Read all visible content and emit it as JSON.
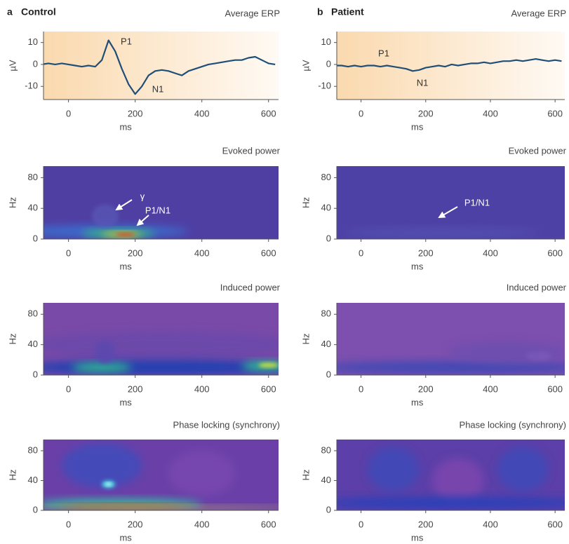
{
  "panels": [
    {
      "letter": "a",
      "label": "Control"
    },
    {
      "letter": "b",
      "label": "Patient"
    }
  ],
  "chart_data": [
    {
      "type": "line",
      "title": "Average ERP",
      "xlabel": "ms",
      "ylabel": "µV",
      "color": "#1f4e79",
      "x": [
        -80,
        -60,
        -40,
        -20,
        0,
        20,
        40,
        60,
        80,
        100,
        120,
        140,
        160,
        180,
        200,
        220,
        240,
        260,
        280,
        300,
        320,
        340,
        360,
        380,
        400,
        420,
        440,
        460,
        480,
        500,
        520,
        540,
        560,
        580,
        600,
        620
      ],
      "values": [
        0,
        0.5,
        0,
        0.5,
        0,
        -0.5,
        -1,
        -0.5,
        -1,
        2,
        11,
        6,
        -2,
        -9,
        -13.5,
        -10,
        -5,
        -3,
        -2.5,
        -3,
        -4,
        -5,
        -3,
        -2,
        -1,
        0,
        0.5,
        1,
        1.5,
        2,
        2,
        3,
        3.5,
        2,
        0.5,
        0
      ],
      "annotations": [
        "P1",
        "N1"
      ],
      "xlim": [
        -75,
        630
      ],
      "xticks": [
        0,
        200,
        400,
        600
      ],
      "ylim": [
        -16,
        15
      ],
      "yticks": [
        -10,
        0,
        10
      ]
    },
    {
      "type": "line",
      "title": "Average ERP",
      "xlabel": "ms",
      "ylabel": "µV",
      "color": "#1f4e79",
      "x": [
        -80,
        -60,
        -40,
        -20,
        0,
        20,
        40,
        60,
        80,
        100,
        120,
        140,
        160,
        180,
        200,
        220,
        240,
        260,
        280,
        300,
        320,
        340,
        360,
        380,
        400,
        420,
        440,
        460,
        480,
        500,
        520,
        540,
        560,
        580,
        600,
        620
      ],
      "values": [
        -0.5,
        -0.5,
        -1,
        -0.5,
        -1,
        -0.5,
        -0.5,
        -1,
        -0.5,
        -1,
        -1.5,
        -2,
        -3,
        -2.5,
        -1.5,
        -1,
        -0.5,
        -1,
        0,
        -0.5,
        0,
        0.5,
        0.5,
        1,
        0.5,
        1,
        1.5,
        1.5,
        2,
        1.5,
        2,
        2.5,
        2,
        1.5,
        2,
        1.5
      ],
      "annotations": [
        "P1",
        "N1"
      ],
      "xlim": [
        -75,
        630
      ],
      "xticks": [
        0,
        200,
        400,
        600
      ],
      "ylim": [
        -16,
        15
      ],
      "yticks": [
        -10,
        0,
        10
      ]
    },
    {
      "type": "heatmap",
      "title": "Evoked power",
      "xlabel": "ms",
      "ylabel": "Hz",
      "annotations": [
        "γ",
        "P1/N1"
      ],
      "xlim": [
        -75,
        630
      ],
      "xticks": [
        0,
        200,
        400,
        600
      ],
      "ylim": [
        0,
        95
      ],
      "yticks": [
        0,
        40,
        80
      ]
    },
    {
      "type": "heatmap",
      "title": "Evoked power",
      "xlabel": "ms",
      "ylabel": "Hz",
      "annotations": [
        "P1/N1"
      ],
      "xlim": [
        -75,
        630
      ],
      "xticks": [
        0,
        200,
        400,
        600
      ],
      "ylim": [
        0,
        95
      ],
      "yticks": [
        0,
        40,
        80
      ]
    },
    {
      "type": "heatmap",
      "title": "Induced power",
      "xlabel": "ms",
      "ylabel": "Hz",
      "xlim": [
        -75,
        630
      ],
      "xticks": [
        0,
        200,
        400,
        600
      ],
      "ylim": [
        0,
        95
      ],
      "yticks": [
        0,
        40,
        80
      ]
    },
    {
      "type": "heatmap",
      "title": "Induced power",
      "xlabel": "ms",
      "ylabel": "Hz",
      "xlim": [
        -75,
        630
      ],
      "xticks": [
        0,
        200,
        400,
        600
      ],
      "ylim": [
        0,
        95
      ],
      "yticks": [
        0,
        40,
        80
      ]
    },
    {
      "type": "heatmap",
      "title": "Phase locking (synchrony)",
      "xlabel": "ms",
      "ylabel": "Hz",
      "xlim": [
        -75,
        630
      ],
      "xticks": [
        0,
        200,
        400,
        600
      ],
      "ylim": [
        0,
        95
      ],
      "yticks": [
        0,
        40,
        80
      ]
    },
    {
      "type": "heatmap",
      "title": "Phase locking (synchrony)",
      "xlabel": "ms",
      "ylabel": "Hz",
      "xlim": [
        -75,
        630
      ],
      "xticks": [
        0,
        200,
        400,
        600
      ],
      "ylim": [
        0,
        95
      ],
      "yticks": [
        0,
        40,
        80
      ]
    }
  ]
}
